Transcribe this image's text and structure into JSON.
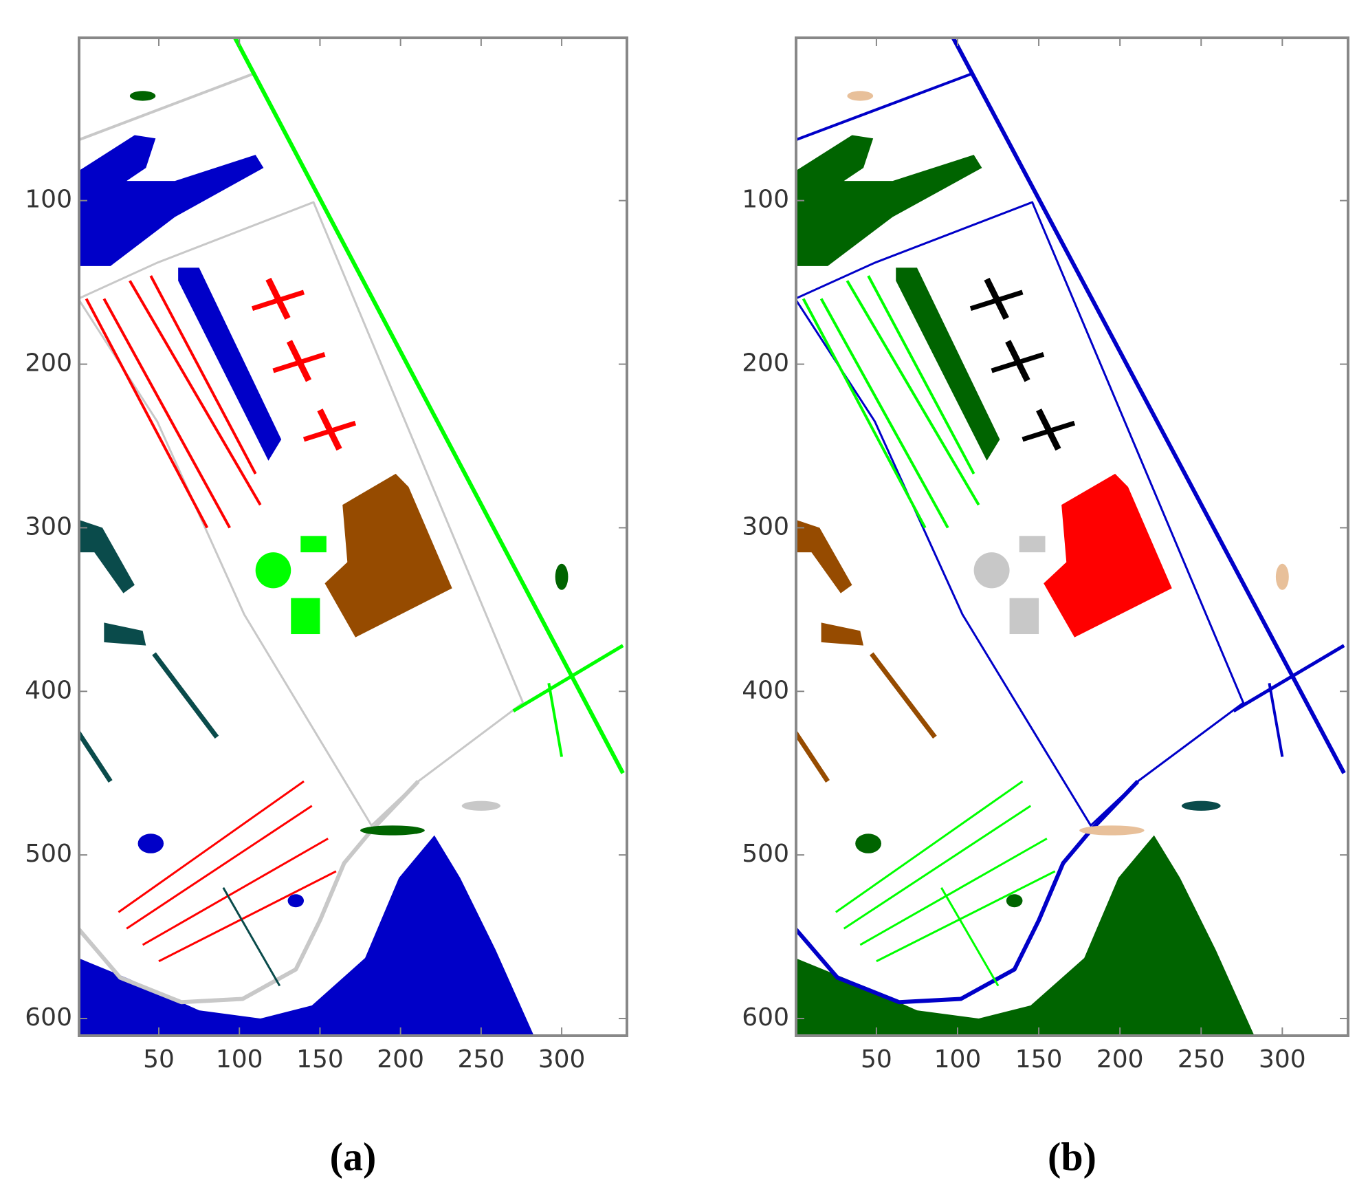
{
  "chart_data": [
    {
      "type": "image",
      "caption": "(a)",
      "xlim": [
        0.5,
        340.5
      ],
      "ylim": [
        610.5,
        0.5
      ],
      "xticks": [
        50,
        100,
        150,
        200,
        250,
        300
      ],
      "yticks": [
        100,
        200,
        300,
        400,
        500,
        600
      ]
    },
    {
      "type": "image",
      "caption": "(b)",
      "xlim": [
        0.5,
        340.5
      ],
      "ylim": [
        610.5,
        0.5
      ],
      "xticks": [
        50,
        100,
        150,
        200,
        250,
        300
      ],
      "yticks": [
        100,
        200,
        300,
        400,
        500,
        600
      ]
    }
  ]
}
